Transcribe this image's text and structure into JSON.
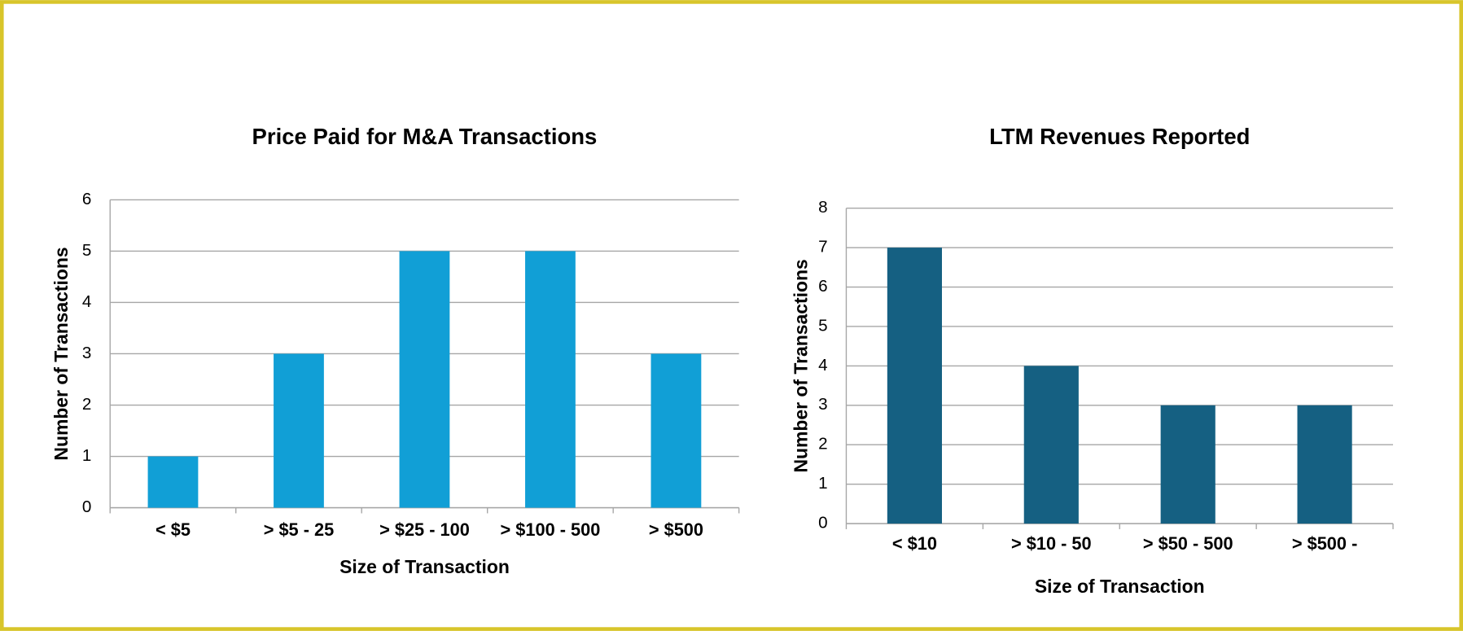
{
  "chart_data": [
    {
      "type": "bar",
      "title": "Price Paid for M&A Transactions",
      "x_label": "Size of Transaction",
      "y_label": "Number of Transactions",
      "categories": [
        "< $5",
        "> $5 - 25",
        "> $25 - 100",
        "> $100 - 500",
        "> $500"
      ],
      "values": [
        1,
        3,
        5,
        5,
        3
      ],
      "color": "#119fd6",
      "ylim": [
        0,
        6
      ],
      "yticks": [
        0,
        1,
        2,
        3,
        4,
        5,
        6
      ],
      "grid": true
    },
    {
      "type": "bar",
      "title": "LTM Revenues Reported",
      "x_label": "Size of Transaction",
      "y_label": "Number of Transactions",
      "categories": [
        "< $10",
        "> $10 - 50",
        "> $50 - 500",
        "> $500 -"
      ],
      "values": [
        7,
        4,
        3,
        3
      ],
      "color": "#156082",
      "ylim": [
        0,
        8
      ],
      "yticks": [
        0,
        1,
        2,
        3,
        4,
        5,
        6,
        7,
        8
      ],
      "grid": true
    }
  ]
}
